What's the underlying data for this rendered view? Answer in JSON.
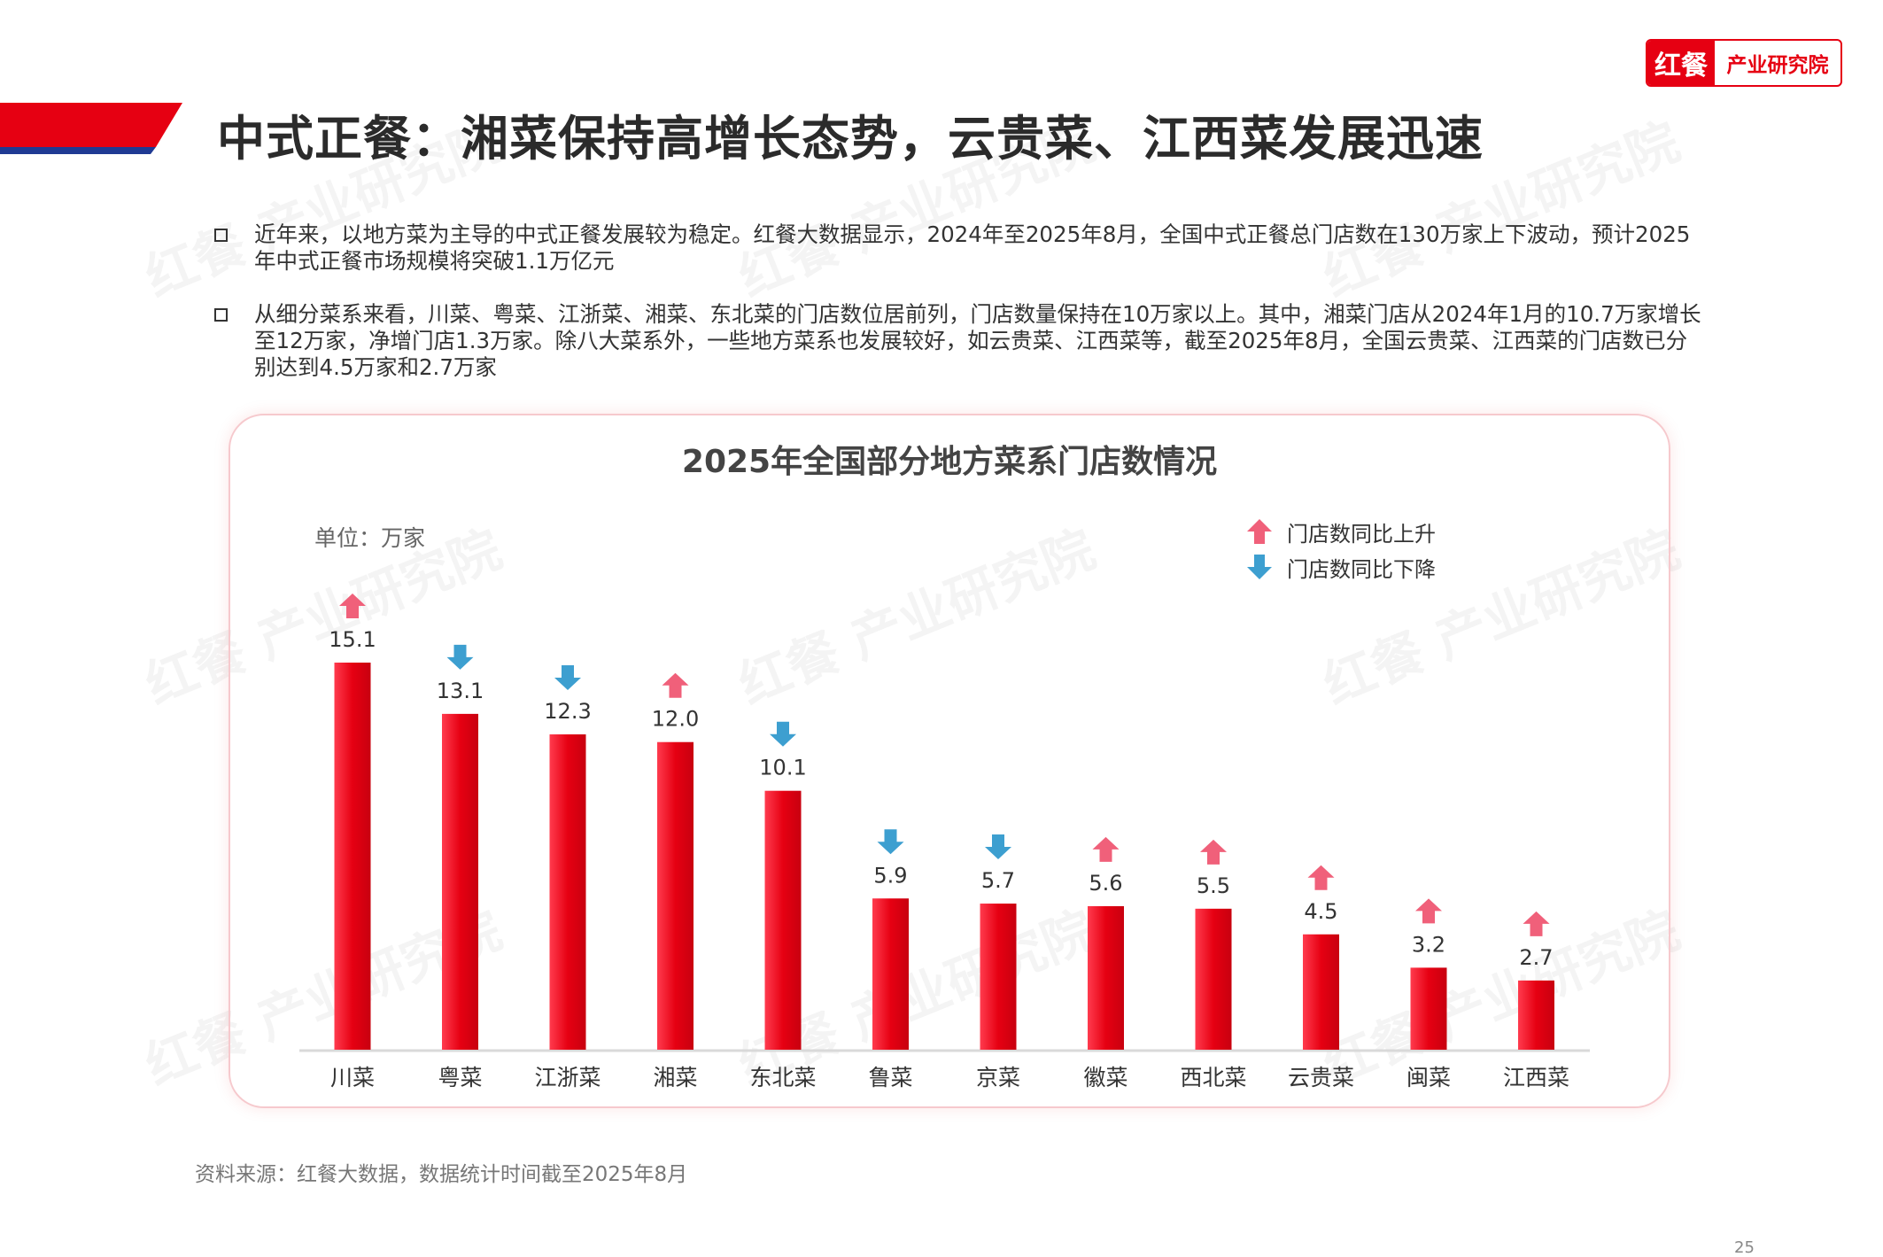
{
  "header": {
    "title": "中式正餐：湘菜保持高增长态势，云贵菜、江西菜发展迅速",
    "logo_mark": "红餐",
    "logo_text": "产业研究院"
  },
  "watermark": "红餐 产业研究院",
  "bullets": [
    "近年来，以地方菜为主导的中式正餐发展较为稳定。红餐大数据显示，2024年至2025年8月，全国中式正餐总门店数在130万家上下波动，预计2025年中式正餐市场规模将突破1.1万亿元",
    "从细分菜系来看，川菜、粤菜、江浙菜、湘菜、东北菜的门店数位居前列，门店数量保持在10万家以上。其中，湘菜门店从2024年1月的10.7万家增长至12万家，净增门店1.3万家。除八大菜系外，一些地方菜系也发展较好，如云贵菜、江西菜等，截至2025年8月，全国云贵菜、江西菜的门店数已分别达到4.5万家和2.7万家"
  ],
  "chart_data": {
    "type": "bar",
    "title": "2025年全国部分地方菜系门店数情况",
    "unit": "单位：万家",
    "categories": [
      "川菜",
      "粤菜",
      "江浙菜",
      "湘菜",
      "东北菜",
      "鲁菜",
      "京菜",
      "徽菜",
      "西北菜",
      "云贵菜",
      "闽菜",
      "江西菜"
    ],
    "values": [
      15.1,
      13.1,
      12.3,
      12.0,
      10.1,
      5.9,
      5.7,
      5.6,
      5.5,
      4.5,
      3.2,
      2.7
    ],
    "value_labels": [
      "15.1",
      "13.1",
      "12.3",
      "12.0",
      "10.1",
      "5.9",
      "5.7",
      "5.6",
      "5.5",
      "4.5",
      "3.2",
      "2.7"
    ],
    "yoy_trend": [
      "up",
      "down",
      "down",
      "up",
      "down",
      "down",
      "down",
      "up",
      "up",
      "up",
      "up",
      "up"
    ],
    "legend": [
      {
        "label": "门店数同比上升",
        "trend": "up"
      },
      {
        "label": "门店数同比下降",
        "trend": "down"
      }
    ],
    "ylim": [
      0,
      15.1
    ],
    "grid": false,
    "legend_position": "top-right",
    "colors": {
      "bar": "#e60012",
      "up": "#f0607a",
      "down": "#3d9fd0"
    }
  },
  "footer": {
    "source": "资料来源：红餐大数据，数据统计时间截至2025年8月",
    "page_number": "25"
  }
}
